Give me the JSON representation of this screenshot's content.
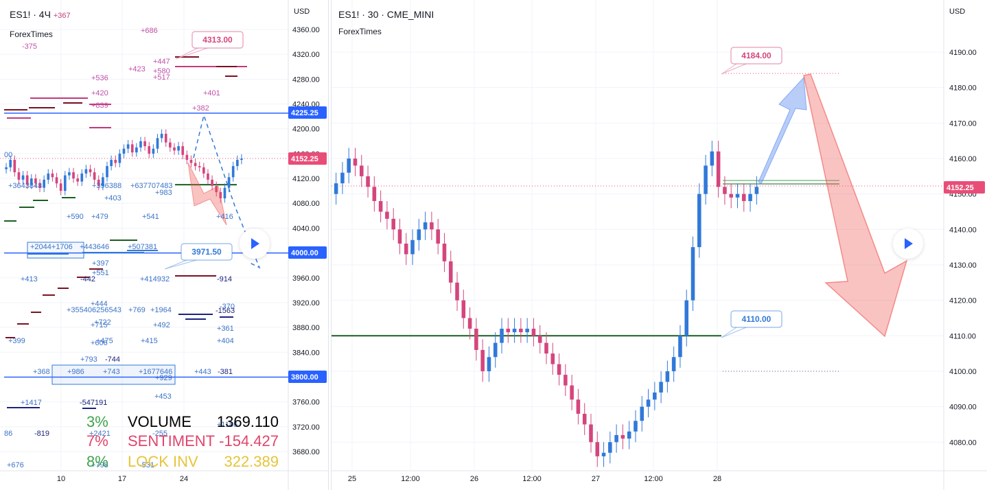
{
  "left_panel": {
    "symbol": "ES1! · 4Ч",
    "change": "+367",
    "source": "ForexTimes",
    "currency": "USD",
    "callouts": [
      {
        "text": "4313.00",
        "color": "#d5457d"
      },
      {
        "text": "3971.50",
        "color": "#3179d9"
      }
    ],
    "price_badges": [
      {
        "text": "4225.25",
        "color": "#2962ff"
      },
      {
        "text": "4152.25",
        "color": "#e84d78"
      },
      {
        "text": "4000.00",
        "color": "#2962ff"
      },
      {
        "text": "3800.00",
        "color": "#2962ff"
      }
    ],
    "stats": [
      {
        "pct": "3%",
        "label": "VOLUME",
        "value": "1369.110",
        "pct_color": "#3fa34d",
        "color": "#000000"
      },
      {
        "pct": "7%",
        "label": "SENTIMENT",
        "value": "-154.427",
        "pct_color": "#e0456c",
        "color": "#e0456c"
      },
      {
        "pct": "8%",
        "label": "LOCK INV",
        "value": "322.389",
        "pct_color": "#3fa34d",
        "color": "#e6c43a"
      }
    ],
    "floating_labels": [
      {
        "text": "-375",
        "c": "m"
      },
      {
        "text": "+686",
        "c": "m"
      },
      {
        "text": "+447",
        "c": "m"
      },
      {
        "text": "+423",
        "c": "m"
      },
      {
        "text": "+580",
        "c": "m"
      },
      {
        "text": "+517",
        "c": "m"
      },
      {
        "text": "+536",
        "c": "m"
      },
      {
        "text": "+420",
        "c": "m"
      },
      {
        "text": "+839",
        "c": "m"
      },
      {
        "text": "+401",
        "c": "m"
      },
      {
        "text": "+382",
        "c": "m"
      },
      {
        "text": "00",
        "c": "b"
      },
      {
        "text": "+3643843",
        "c": "b"
      },
      {
        "text": "+396388",
        "c": "b"
      },
      {
        "text": "+637707483",
        "c": "b"
      },
      {
        "text": "+983",
        "c": "b"
      },
      {
        "text": "+403",
        "c": "b"
      },
      {
        "text": "+590",
        "c": "b"
      },
      {
        "text": "+479",
        "c": "b"
      },
      {
        "text": "+541",
        "c": "b"
      },
      {
        "text": "+416",
        "c": "b"
      },
      {
        "text": "+2044+1706",
        "c": "b"
      },
      {
        "text": "+443646",
        "c": "b"
      },
      {
        "text": "+507381",
        "c": "b"
      },
      {
        "text": "+397",
        "c": "b"
      },
      {
        "text": "+551",
        "c": "b"
      },
      {
        "text": "+413",
        "c": "b"
      },
      {
        "text": "-442",
        "c": "n"
      },
      {
        "text": "+414932",
        "c": "b"
      },
      {
        "text": "-914",
        "c": "n"
      },
      {
        "text": "+444",
        "c": "b"
      },
      {
        "text": "+355406256543",
        "c": "b"
      },
      {
        "text": "+769",
        "c": "b"
      },
      {
        "text": "+1964",
        "c": "b"
      },
      {
        "text": "-370",
        "c": "b"
      },
      {
        "text": "-1563",
        "c": "n"
      },
      {
        "text": "+722",
        "c": "b"
      },
      {
        "text": "+715",
        "c": "b"
      },
      {
        "text": "+492",
        "c": "b"
      },
      {
        "text": "+361",
        "c": "b"
      },
      {
        "text": "+606",
        "c": "b"
      },
      {
        "text": "+399",
        "c": "b"
      },
      {
        "text": "+475",
        "c": "b"
      },
      {
        "text": "+415",
        "c": "b"
      },
      {
        "text": "+404",
        "c": "b"
      },
      {
        "text": "+793",
        "c": "b"
      },
      {
        "text": "-744",
        "c": "n"
      },
      {
        "text": "+368",
        "c": "b"
      },
      {
        "text": "+986",
        "c": "b"
      },
      {
        "text": "+743",
        "c": "b"
      },
      {
        "text": "+1677646",
        "c": "b"
      },
      {
        "text": "+929",
        "c": "b"
      },
      {
        "text": "+443",
        "c": "b"
      },
      {
        "text": "-381",
        "c": "n"
      },
      {
        "text": "+453",
        "c": "b"
      },
      {
        "text": "+1417",
        "c": "b"
      },
      {
        "text": "-547191",
        "c": "n"
      },
      {
        "text": "86",
        "c": "b"
      },
      {
        "text": "-819",
        "c": "n"
      },
      {
        "text": "+2421",
        "c": "b"
      },
      {
        "text": "-255",
        "c": "b"
      },
      {
        "text": "+1186",
        "c": "b"
      },
      {
        "text": "+676",
        "c": "b"
      },
      {
        "text": "+798",
        "c": "b"
      },
      {
        "text": "-531",
        "c": "b"
      }
    ]
  },
  "right_panel": {
    "symbol": "ES1! · 30 · CME_MINI",
    "source": "ForexTimes",
    "currency": "USD",
    "callouts": [
      {
        "text": "4184.00",
        "color": "#d5457d"
      },
      {
        "text": "4110.00",
        "color": "#3179d9"
      }
    ],
    "price_badges": [
      {
        "text": "4152.25",
        "color": "#e84d78"
      }
    ]
  },
  "colors": {
    "up": "#3179d9",
    "down": "#d5457d",
    "grid": "#f0f3fa",
    "axis_text": "#131722"
  },
  "chart_data": [
    {
      "type": "candlestick",
      "title": "ES1! · 4Ч",
      "y_axis_ticks": [
        4360,
        4320,
        4280,
        4240,
        4200,
        4160,
        4120,
        4080,
        4040,
        4000,
        3960,
        3920,
        3880,
        3840,
        3800,
        3760,
        3720,
        3680
      ],
      "y_tick_labels": [
        "4360.00",
        "4320.00",
        "4280.00",
        "4240.00",
        "4200.00",
        "4160.00",
        "4120.00",
        "4080.00",
        "4040.00",
        "4000.00",
        "3960.00",
        "3920.00",
        "3880.00",
        "3840.00",
        "3800.00",
        "3760.00",
        "3720.00",
        "3680.00"
      ],
      "ylim": [
        3650,
        4385
      ],
      "x_tick_labels": [
        "10",
        "17",
        "24"
      ],
      "last_price": 4152.25,
      "horizontal_lines": [
        4225.25,
        4000.0,
        3800.0
      ],
      "closes": [
        4138,
        4150,
        4130,
        4118,
        4125,
        4110,
        4120,
        4112,
        4105,
        4118,
        4128,
        4122,
        4112,
        4100,
        4125,
        4130,
        4120,
        4115,
        4128,
        4135,
        4130,
        4118,
        4108,
        4122,
        4140,
        4150,
        4145,
        4160,
        4168,
        4175,
        4162,
        4170,
        4180,
        4172,
        4160,
        4168,
        4185,
        4192,
        4178,
        4170,
        4165,
        4172,
        4158,
        4150,
        4145,
        4140,
        4138,
        4128,
        4118,
        4108,
        4098,
        4088,
        4105,
        4122,
        4140,
        4150,
        4152
      ],
      "grid": true
    },
    {
      "type": "candlestick",
      "title": "ES1! · 30 · CME_MINI",
      "y_axis_ticks": [
        4190,
        4180,
        4170,
        4160,
        4150,
        4140,
        4130,
        4120,
        4110,
        4100,
        4090,
        4080
      ],
      "y_tick_labels": [
        "4190.00",
        "4180.00",
        "4170.00",
        "4160.00",
        "4150.00",
        "4140.00",
        "4130.00",
        "4120.00",
        "4110.00",
        "4100.00",
        "4090.00",
        "4080.00"
      ],
      "ylim": [
        4073,
        4200
      ],
      "x_tick_labels": [
        "25",
        "12:00",
        "26",
        "12:00",
        "27",
        "12:00",
        "28"
      ],
      "last_price": 4152.25,
      "horizontal_lines": [
        4110.0
      ],
      "closes": [
        4153,
        4156,
        4160,
        4158,
        4155,
        4152,
        4148,
        4145,
        4143,
        4140,
        4136,
        4133,
        4137,
        4140,
        4142,
        4140,
        4136,
        4131,
        4125,
        4120,
        4115,
        4112,
        4106,
        4100,
        4104,
        4108,
        4112,
        4111,
        4112,
        4111,
        4112,
        4110,
        4108,
        4105,
        4102,
        4099,
        4096,
        4092,
        4088,
        4085,
        4080,
        4076,
        4077,
        4080,
        4082,
        4081,
        4083,
        4086,
        4090,
        4092,
        4094,
        4097,
        4100,
        4104,
        4110,
        4120,
        4135,
        4150,
        4158,
        4162,
        4152,
        4150,
        4149,
        4150,
        4148,
        4150,
        4152
      ],
      "grid": true
    }
  ]
}
